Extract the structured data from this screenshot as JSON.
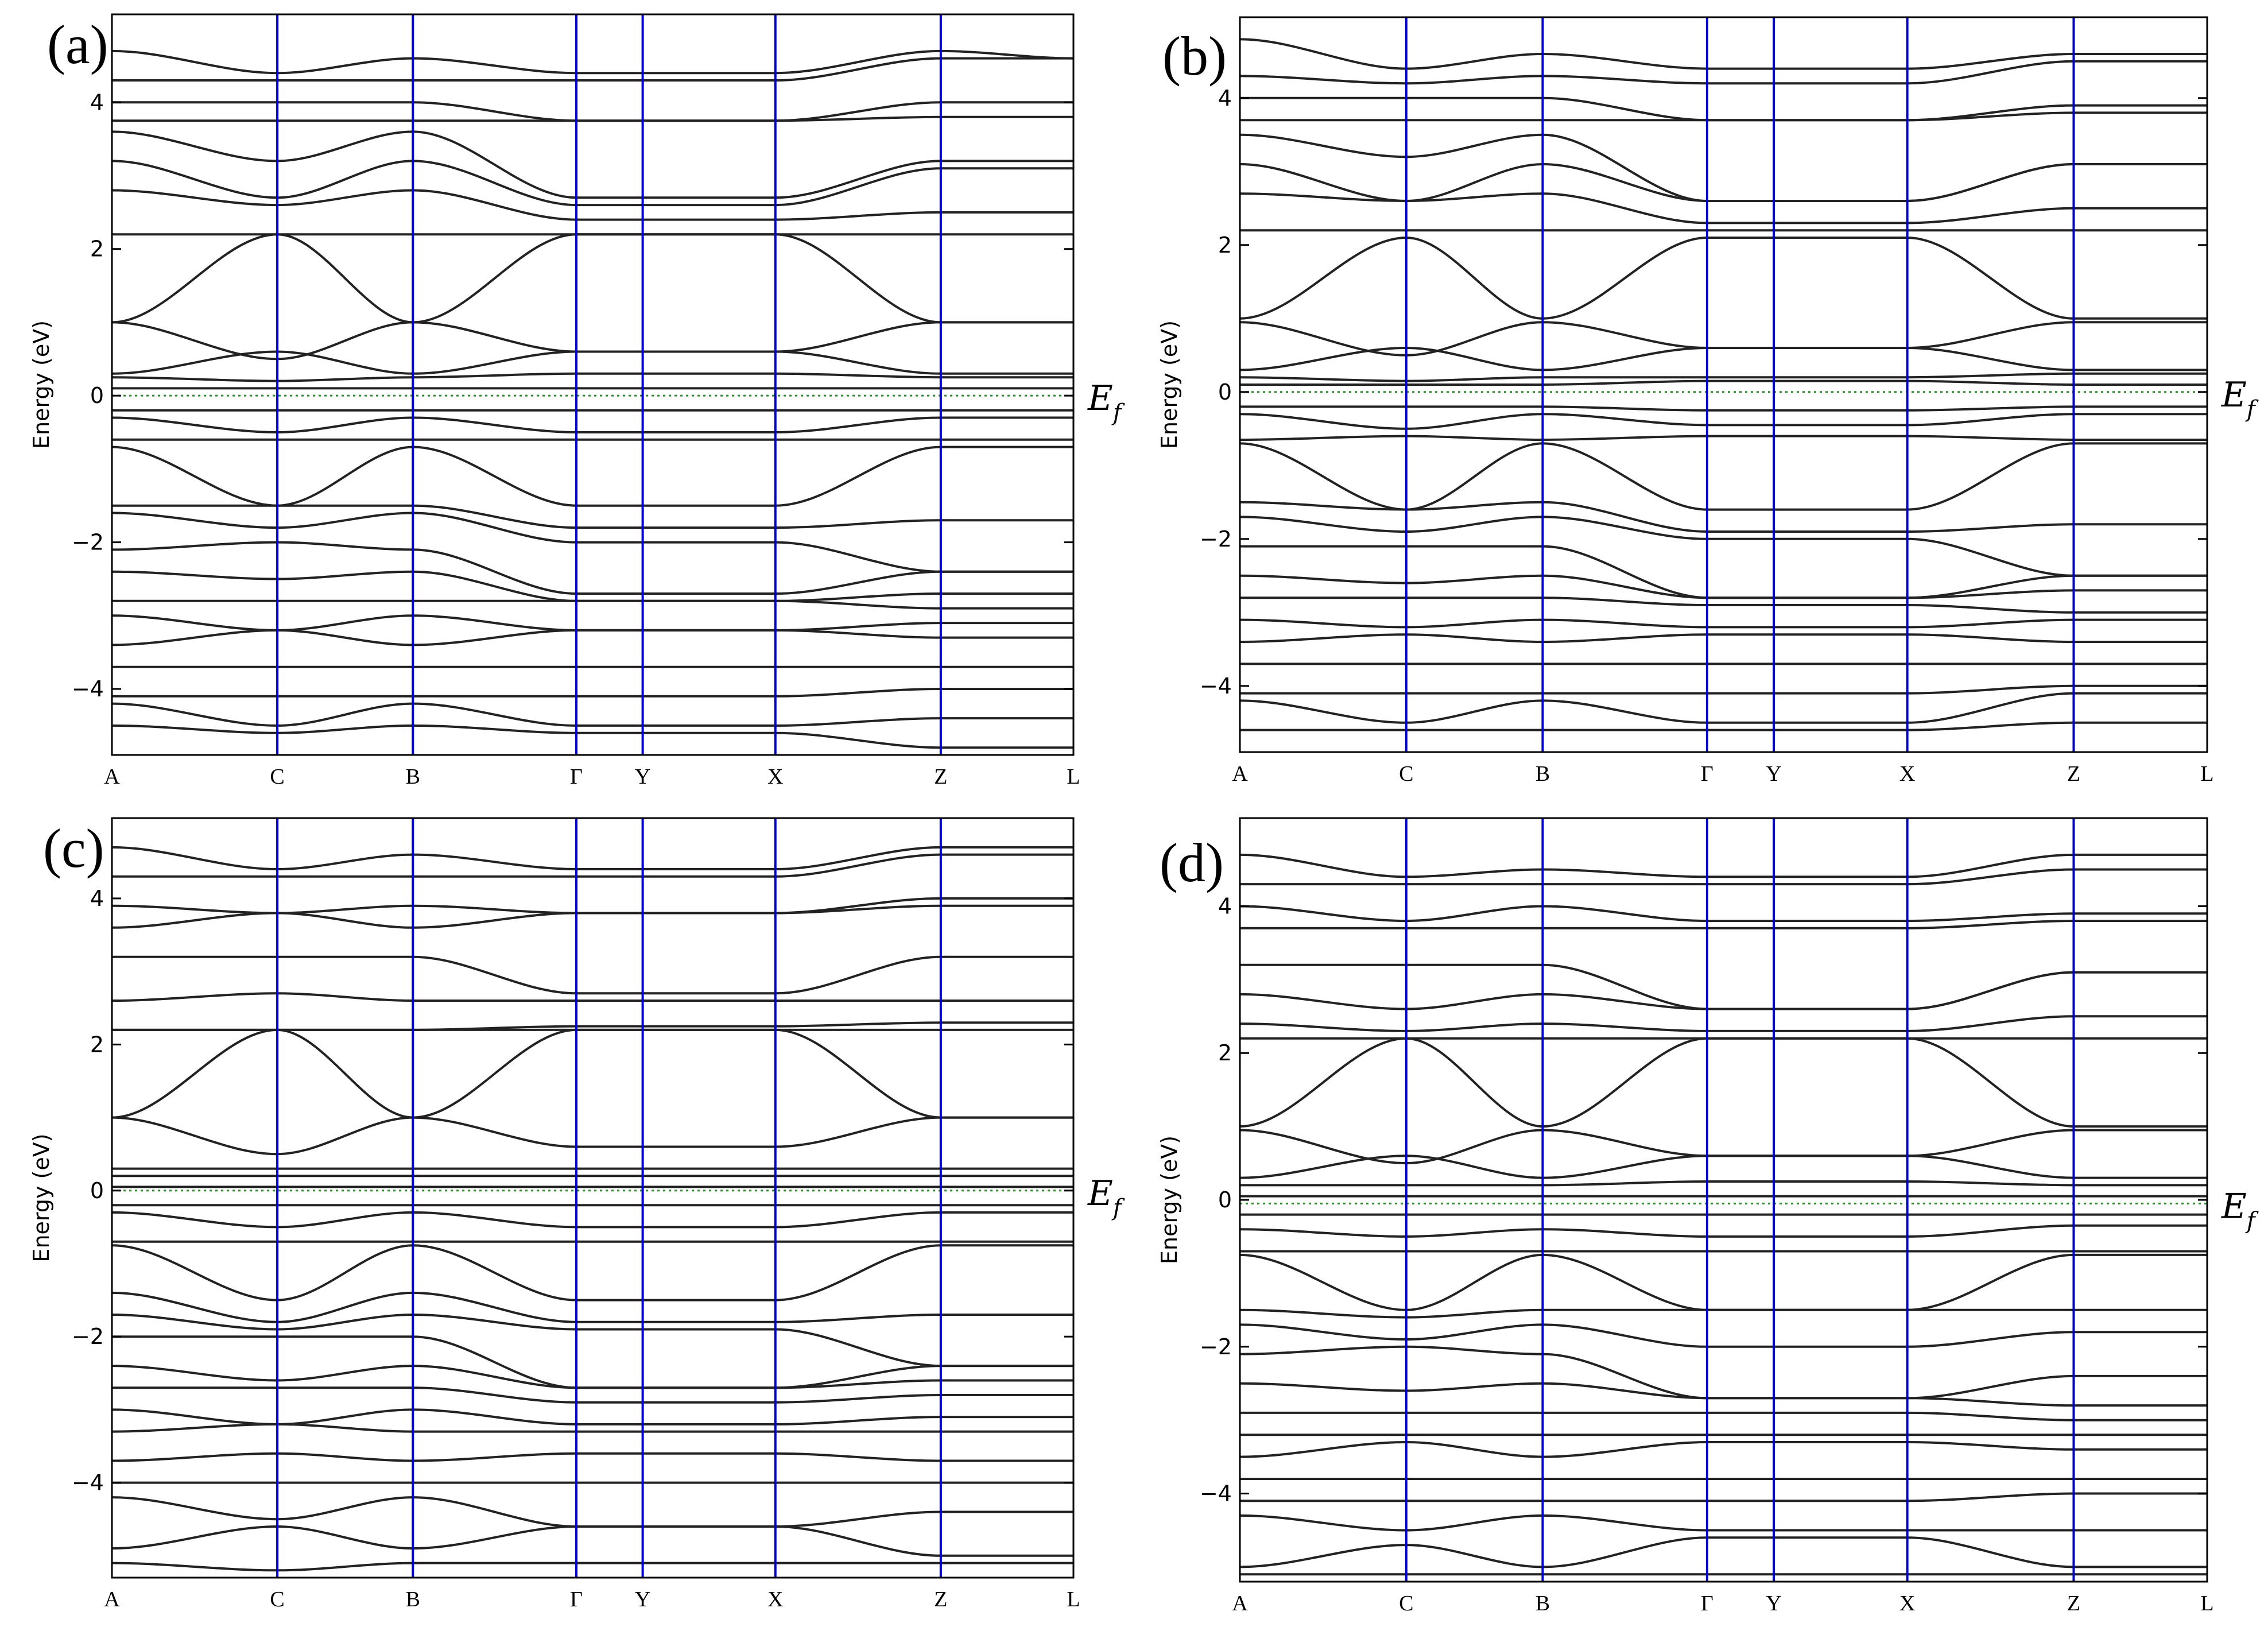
{
  "chart_data": [
    {
      "type": "line",
      "panel": "(a)",
      "ylabel": "Energy (eV)",
      "ylim": [
        -4.9,
        5.2
      ],
      "yticks": [
        -4,
        -2,
        0,
        2,
        4
      ],
      "kpoints": [
        "A",
        "C",
        "B",
        "Γ",
        "Y",
        "X",
        "Z",
        "L"
      ],
      "fermi_label": "E",
      "fermi_sub": "f",
      "fermi_level": 0.0,
      "bands_at_kpoints": [
        [
          4.7,
          4.4,
          4.6,
          4.4,
          4.4,
          4.4,
          4.7,
          4.6
        ],
        [
          4.3,
          4.3,
          4.3,
          4.3,
          4.3,
          4.3,
          4.6,
          4.6
        ],
        [
          4.0,
          4.0,
          4.0,
          3.75,
          3.75,
          3.75,
          4.0,
          4.0
        ],
        [
          3.75,
          3.75,
          3.75,
          3.75,
          3.75,
          3.75,
          3.8,
          3.8
        ],
        [
          3.6,
          3.2,
          3.6,
          2.7,
          2.7,
          2.7,
          3.2,
          3.2
        ],
        [
          3.2,
          2.7,
          3.2,
          2.6,
          2.6,
          2.6,
          3.1,
          3.1
        ],
        [
          2.8,
          2.6,
          2.8,
          2.4,
          2.4,
          2.4,
          2.5,
          2.5
        ],
        [
          2.2,
          2.2,
          2.2,
          2.2,
          2.2,
          2.2,
          2.2,
          2.2
        ],
        [
          1.0,
          2.2,
          1.0,
          2.2,
          2.2,
          2.2,
          1.0,
          1.0
        ],
        [
          1.0,
          0.5,
          1.0,
          0.6,
          0.6,
          0.6,
          1.0,
          1.0
        ],
        [
          0.3,
          0.6,
          0.3,
          0.6,
          0.6,
          0.6,
          0.3,
          0.3
        ],
        [
          0.25,
          0.2,
          0.25,
          0.3,
          0.3,
          0.3,
          0.25,
          0.25
        ],
        [
          0.1,
          0.1,
          0.1,
          0.1,
          0.1,
          0.1,
          0.1,
          0.1
        ],
        [
          -0.2,
          -0.2,
          -0.2,
          -0.2,
          -0.2,
          -0.2,
          -0.2,
          -0.2
        ],
        [
          -0.3,
          -0.5,
          -0.3,
          -0.5,
          -0.5,
          -0.5,
          -0.3,
          -0.3
        ],
        [
          -0.6,
          -0.6,
          -0.6,
          -0.6,
          -0.6,
          -0.6,
          -0.6,
          -0.6
        ],
        [
          -0.7,
          -1.5,
          -0.7,
          -1.5,
          -1.5,
          -1.5,
          -0.7,
          -0.7
        ],
        [
          -1.5,
          -1.5,
          -1.5,
          -1.8,
          -1.8,
          -1.8,
          -1.7,
          -1.7
        ],
        [
          -1.6,
          -1.8,
          -1.6,
          -2.0,
          -2.0,
          -2.0,
          -2.4,
          -2.4
        ],
        [
          -2.1,
          -2.0,
          -2.1,
          -2.7,
          -2.7,
          -2.7,
          -2.4,
          -2.4
        ],
        [
          -2.4,
          -2.5,
          -2.4,
          -2.8,
          -2.8,
          -2.8,
          -2.7,
          -2.7
        ],
        [
          -2.8,
          -2.8,
          -2.8,
          -2.8,
          -2.8,
          -2.8,
          -2.9,
          -2.9
        ],
        [
          -3.0,
          -3.2,
          -3.0,
          -3.2,
          -3.2,
          -3.2,
          -3.1,
          -3.1
        ],
        [
          -3.4,
          -3.2,
          -3.4,
          -3.2,
          -3.2,
          -3.2,
          -3.3,
          -3.3
        ],
        [
          -3.7,
          -3.7,
          -3.7,
          -3.7,
          -3.7,
          -3.7,
          -3.7,
          -3.7
        ],
        [
          -4.1,
          -4.1,
          -4.1,
          -4.1,
          -4.1,
          -4.1,
          -4.0,
          -4.0
        ],
        [
          -4.2,
          -4.5,
          -4.2,
          -4.5,
          -4.5,
          -4.5,
          -4.4,
          -4.4
        ],
        [
          -4.5,
          -4.6,
          -4.5,
          -4.6,
          -4.6,
          -4.6,
          -4.8,
          -4.8
        ]
      ]
    },
    {
      "type": "line",
      "panel": "(b)",
      "ylabel": "Energy (eV)",
      "ylim": [
        -4.9,
        5.1
      ],
      "yticks": [
        -4,
        -2,
        0,
        2,
        4
      ],
      "kpoints": [
        "A",
        "C",
        "B",
        "Γ",
        "Y",
        "X",
        "Z",
        "L"
      ],
      "fermi_label": "E",
      "fermi_sub": "f",
      "fermi_level": 0.0,
      "bands_at_kpoints": [
        [
          4.8,
          4.4,
          4.6,
          4.4,
          4.4,
          4.4,
          4.6,
          4.6
        ],
        [
          4.3,
          4.2,
          4.3,
          4.2,
          4.2,
          4.2,
          4.5,
          4.5
        ],
        [
          4.0,
          4.0,
          4.0,
          3.7,
          3.7,
          3.7,
          3.9,
          3.9
        ],
        [
          3.7,
          3.7,
          3.7,
          3.7,
          3.7,
          3.7,
          3.8,
          3.8
        ],
        [
          3.5,
          3.2,
          3.5,
          2.6,
          2.6,
          2.6,
          3.1,
          3.1
        ],
        [
          3.1,
          2.6,
          3.1,
          2.6,
          2.6,
          2.6,
          3.1,
          3.1
        ],
        [
          2.7,
          2.6,
          2.7,
          2.3,
          2.3,
          2.3,
          2.5,
          2.5
        ],
        [
          2.2,
          2.2,
          2.2,
          2.2,
          2.2,
          2.2,
          2.2,
          2.2
        ],
        [
          1.0,
          2.1,
          1.0,
          2.1,
          2.1,
          2.1,
          1.0,
          1.0
        ],
        [
          0.95,
          0.5,
          0.95,
          0.6,
          0.6,
          0.6,
          0.95,
          0.95
        ],
        [
          0.3,
          0.6,
          0.3,
          0.6,
          0.6,
          0.6,
          0.3,
          0.3
        ],
        [
          0.2,
          0.15,
          0.2,
          0.2,
          0.2,
          0.2,
          0.25,
          0.25
        ],
        [
          0.1,
          0.1,
          0.1,
          0.15,
          0.15,
          0.15,
          0.1,
          0.1
        ],
        [
          -0.2,
          -0.2,
          -0.2,
          -0.25,
          -0.25,
          -0.25,
          -0.2,
          -0.2
        ],
        [
          -0.3,
          -0.5,
          -0.3,
          -0.45,
          -0.45,
          -0.45,
          -0.3,
          -0.3
        ],
        [
          -0.65,
          -0.6,
          -0.65,
          -0.6,
          -0.6,
          -0.6,
          -0.65,
          -0.65
        ],
        [
          -0.7,
          -1.6,
          -0.7,
          -1.6,
          -1.6,
          -1.6,
          -0.7,
          -0.7
        ],
        [
          -1.5,
          -1.6,
          -1.5,
          -1.9,
          -1.9,
          -1.9,
          -1.8,
          -1.8
        ],
        [
          -1.7,
          -1.9,
          -1.7,
          -2.0,
          -2.0,
          -2.0,
          -2.5,
          -2.5
        ],
        [
          -2.1,
          -2.1,
          -2.1,
          -2.8,
          -2.8,
          -2.8,
          -2.5,
          -2.5
        ],
        [
          -2.5,
          -2.6,
          -2.5,
          -2.8,
          -2.8,
          -2.8,
          -2.7,
          -2.7
        ],
        [
          -2.8,
          -2.8,
          -2.8,
          -2.9,
          -2.9,
          -2.9,
          -3.0,
          -3.0
        ],
        [
          -3.1,
          -3.2,
          -3.1,
          -3.2,
          -3.2,
          -3.2,
          -3.1,
          -3.1
        ],
        [
          -3.4,
          -3.3,
          -3.4,
          -3.3,
          -3.3,
          -3.3,
          -3.4,
          -3.4
        ],
        [
          -3.7,
          -3.7,
          -3.7,
          -3.7,
          -3.7,
          -3.7,
          -3.7,
          -3.7
        ],
        [
          -4.1,
          -4.1,
          -4.1,
          -4.1,
          -4.1,
          -4.1,
          -4.0,
          -4.0
        ],
        [
          -4.2,
          -4.5,
          -4.2,
          -4.5,
          -4.5,
          -4.5,
          -4.1,
          -4.1
        ],
        [
          -4.6,
          -4.6,
          -4.6,
          -4.6,
          -4.6,
          -4.6,
          -4.5,
          -4.5
        ]
      ]
    },
    {
      "type": "line",
      "panel": "(c)",
      "ylabel": "Energy (eV)",
      "ylim": [
        -5.3,
        5.1
      ],
      "yticks": [
        -4,
        -2,
        0,
        2,
        4
      ],
      "kpoints": [
        "A",
        "C",
        "B",
        "Γ",
        "Y",
        "X",
        "Z",
        "L"
      ],
      "fermi_label": "E",
      "fermi_sub": "f",
      "fermi_level": 0.0,
      "bands_at_kpoints": [
        [
          4.7,
          4.4,
          4.6,
          4.4,
          4.4,
          4.4,
          4.7,
          4.7
        ],
        [
          4.3,
          4.3,
          4.3,
          4.3,
          4.3,
          4.3,
          4.6,
          4.6
        ],
        [
          3.9,
          3.8,
          3.9,
          3.8,
          3.8,
          3.8,
          4.0,
          4.0
        ],
        [
          3.6,
          3.8,
          3.6,
          3.8,
          3.8,
          3.8,
          3.9,
          3.9
        ],
        [
          3.2,
          3.2,
          3.2,
          2.7,
          2.7,
          2.7,
          3.2,
          3.2
        ],
        [
          2.6,
          2.7,
          2.6,
          2.6,
          2.6,
          2.6,
          2.6,
          2.6
        ],
        [
          2.2,
          2.2,
          2.2,
          2.25,
          2.25,
          2.25,
          2.3,
          2.3
        ],
        [
          2.2,
          2.2,
          2.2,
          2.2,
          2.2,
          2.2,
          2.2,
          2.2
        ],
        [
          1.0,
          2.2,
          1.0,
          2.2,
          2.2,
          2.2,
          1.0,
          1.0
        ],
        [
          1.0,
          0.5,
          1.0,
          0.6,
          0.6,
          0.6,
          1.0,
          1.0
        ],
        [
          0.3,
          0.3,
          0.3,
          0.3,
          0.3,
          0.3,
          0.3,
          0.3
        ],
        [
          0.2,
          0.2,
          0.2,
          0.2,
          0.2,
          0.2,
          0.2,
          0.2
        ],
        [
          0.05,
          0.05,
          0.05,
          0.05,
          0.05,
          0.05,
          0.05,
          0.05
        ],
        [
          -0.2,
          -0.2,
          -0.2,
          -0.2,
          -0.2,
          -0.2,
          -0.2,
          -0.2
        ],
        [
          -0.3,
          -0.5,
          -0.3,
          -0.5,
          -0.5,
          -0.5,
          -0.3,
          -0.3
        ],
        [
          -0.7,
          -0.7,
          -0.7,
          -0.7,
          -0.7,
          -0.7,
          -0.7,
          -0.7
        ],
        [
          -0.75,
          -1.5,
          -0.75,
          -1.5,
          -1.5,
          -1.5,
          -0.75,
          -0.75
        ],
        [
          -1.4,
          -1.8,
          -1.4,
          -1.8,
          -1.8,
          -1.8,
          -1.7,
          -1.7
        ],
        [
          -1.7,
          -1.9,
          -1.7,
          -1.9,
          -1.9,
          -1.9,
          -2.4,
          -2.4
        ],
        [
          -2.0,
          -2.0,
          -2.0,
          -2.7,
          -2.7,
          -2.7,
          -2.4,
          -2.4
        ],
        [
          -2.4,
          -2.6,
          -2.4,
          -2.7,
          -2.7,
          -2.7,
          -2.6,
          -2.6
        ],
        [
          -2.7,
          -2.7,
          -2.7,
          -2.9,
          -2.9,
          -2.9,
          -2.8,
          -2.8
        ],
        [
          -3.0,
          -3.2,
          -3.0,
          -3.2,
          -3.2,
          -3.2,
          -3.1,
          -3.1
        ],
        [
          -3.3,
          -3.2,
          -3.3,
          -3.3,
          -3.3,
          -3.3,
          -3.3,
          -3.3
        ],
        [
          -3.7,
          -3.6,
          -3.7,
          -3.6,
          -3.6,
          -3.6,
          -3.7,
          -3.7
        ],
        [
          -4.0,
          -4.0,
          -4.0,
          -4.0,
          -4.0,
          -4.0,
          -4.0,
          -4.0
        ],
        [
          -4.2,
          -4.5,
          -4.2,
          -4.6,
          -4.6,
          -4.6,
          -4.4,
          -4.4
        ],
        [
          -4.9,
          -4.6,
          -4.9,
          -4.6,
          -4.6,
          -4.6,
          -5.0,
          -5.0
        ],
        [
          -5.1,
          -5.2,
          -5.1,
          -5.1,
          -5.1,
          -5.1,
          -5.1,
          -5.1
        ]
      ]
    },
    {
      "type": "line",
      "panel": "(d)",
      "ylabel": "Energy (eV)",
      "ylim": [
        -5.2,
        5.2
      ],
      "yticks": [
        -4,
        -2,
        0,
        2,
        4
      ],
      "kpoints": [
        "A",
        "C",
        "B",
        "Γ",
        "Y",
        "X",
        "Z",
        "L"
      ],
      "fermi_label": "E",
      "fermi_sub": "f",
      "fermi_level": -0.05,
      "bands_at_kpoints": [
        [
          4.7,
          4.4,
          4.5,
          4.4,
          4.4,
          4.4,
          4.7,
          4.7
        ],
        [
          4.3,
          4.3,
          4.3,
          4.3,
          4.3,
          4.3,
          4.5,
          4.5
        ],
        [
          4.0,
          3.8,
          4.0,
          3.8,
          3.8,
          3.8,
          3.9,
          3.9
        ],
        [
          3.7,
          3.7,
          3.7,
          3.7,
          3.7,
          3.7,
          3.8,
          3.8
        ],
        [
          3.2,
          3.2,
          3.2,
          2.6,
          2.6,
          2.6,
          3.1,
          3.1
        ],
        [
          2.8,
          2.6,
          2.8,
          2.6,
          2.6,
          2.6,
          3.1,
          3.1
        ],
        [
          2.4,
          2.3,
          2.4,
          2.3,
          2.3,
          2.3,
          2.5,
          2.5
        ],
        [
          2.2,
          2.2,
          2.2,
          2.2,
          2.2,
          2.2,
          2.2,
          2.2
        ],
        [
          1.0,
          2.2,
          1.0,
          2.2,
          2.2,
          2.2,
          1.0,
          1.0
        ],
        [
          0.95,
          0.5,
          0.95,
          0.6,
          0.6,
          0.6,
          0.95,
          0.95
        ],
        [
          0.3,
          0.6,
          0.3,
          0.6,
          0.6,
          0.6,
          0.3,
          0.3
        ],
        [
          0.2,
          0.2,
          0.2,
          0.25,
          0.25,
          0.25,
          0.2,
          0.2
        ],
        [
          0.05,
          0.05,
          0.05,
          0.05,
          0.05,
          0.05,
          0.05,
          0.05
        ],
        [
          -0.2,
          -0.2,
          -0.2,
          -0.2,
          -0.2,
          -0.2,
          -0.2,
          -0.2
        ],
        [
          -0.4,
          -0.5,
          -0.4,
          -0.5,
          -0.5,
          -0.5,
          -0.35,
          -0.35
        ],
        [
          -0.7,
          -0.7,
          -0.7,
          -0.7,
          -0.7,
          -0.7,
          -0.7,
          -0.7
        ],
        [
          -0.75,
          -1.5,
          -0.75,
          -1.5,
          -1.5,
          -1.5,
          -0.75,
          -0.75
        ],
        [
          -1.5,
          -1.6,
          -1.5,
          -1.5,
          -1.5,
          -1.5,
          -1.5,
          -1.5
        ],
        [
          -1.7,
          -1.9,
          -1.7,
          -2.0,
          -2.0,
          -2.0,
          -1.8,
          -1.8
        ],
        [
          -2.1,
          -2.0,
          -2.1,
          -2.7,
          -2.7,
          -2.7,
          -2.4,
          -2.4
        ],
        [
          -2.5,
          -2.6,
          -2.5,
          -2.7,
          -2.7,
          -2.7,
          -2.8,
          -2.8
        ],
        [
          -2.9,
          -2.9,
          -2.9,
          -2.9,
          -2.9,
          -2.9,
          -3.0,
          -3.0
        ],
        [
          -3.2,
          -3.2,
          -3.2,
          -3.2,
          -3.2,
          -3.2,
          -3.2,
          -3.2
        ],
        [
          -3.5,
          -3.3,
          -3.5,
          -3.3,
          -3.3,
          -3.3,
          -3.4,
          -3.4
        ],
        [
          -3.8,
          -3.8,
          -3.8,
          -3.8,
          -3.8,
          -3.8,
          -3.8,
          -3.8
        ],
        [
          -4.1,
          -4.1,
          -4.1,
          -4.1,
          -4.1,
          -4.1,
          -4.0,
          -4.0
        ],
        [
          -4.3,
          -4.5,
          -4.3,
          -4.5,
          -4.5,
          -4.5,
          -4.5,
          -4.5
        ],
        [
          -5.0,
          -4.7,
          -5.0,
          -4.6,
          -4.6,
          -4.6,
          -5.0,
          -5.0
        ],
        [
          -5.1,
          -5.1,
          -5.1,
          -5.1,
          -5.1,
          -5.1,
          -5.1,
          -5.1
        ]
      ]
    }
  ],
  "colors": {
    "band_line": "#222222",
    "kpoint_line": "#0000cc",
    "fermi_line": "#2e8b2e",
    "frame": "#000000"
  }
}
